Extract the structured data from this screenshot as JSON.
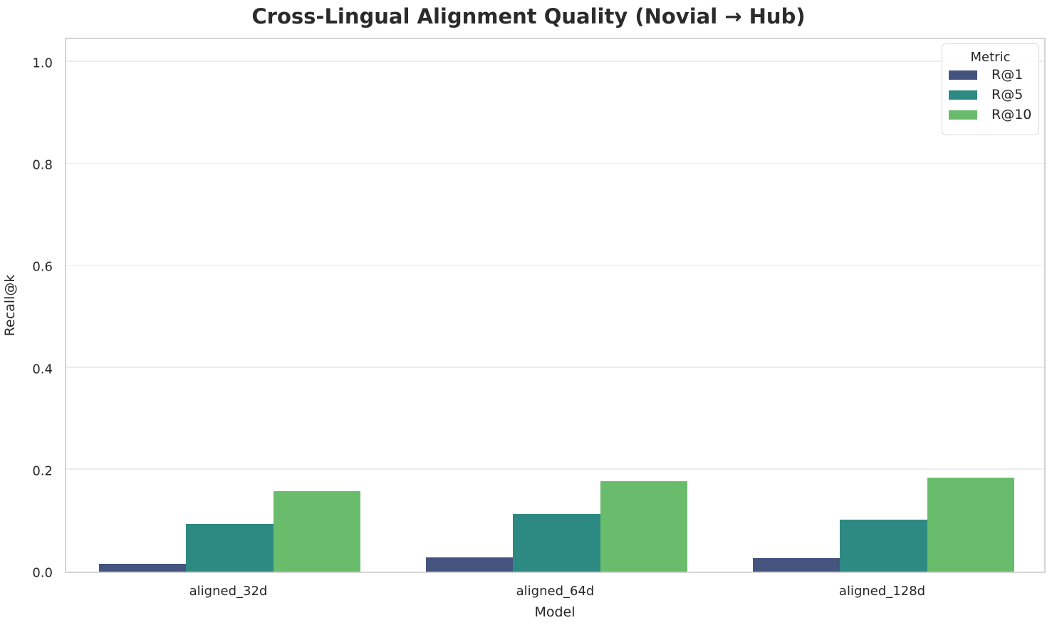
{
  "title": "Cross-Lingual Alignment Quality (Novial → Hub)",
  "chart_data": {
    "type": "bar",
    "title": "Cross-Lingual Alignment Quality (Novial → Hub)",
    "categories": [
      "aligned_32d",
      "aligned_64d",
      "aligned_128d"
    ],
    "series": [
      {
        "name": "R@1",
        "color": "#45547e",
        "values": [
          0.015,
          0.028,
          0.026
        ]
      },
      {
        "name": "R@5",
        "color": "#2d8a82",
        "values": [
          0.094,
          0.113,
          0.102
        ]
      },
      {
        "name": "R@10",
        "color": "#69bc6b",
        "values": [
          0.158,
          0.177,
          0.184
        ]
      }
    ],
    "xlabel": "Model",
    "ylabel": "Recall@k",
    "ylim": [
      0,
      1.05
    ],
    "yticks": [
      0.0,
      0.2,
      0.4,
      0.6,
      0.8,
      1.0
    ],
    "ytick_labels": [
      "0.0",
      "0.2",
      "0.4",
      "0.6",
      "0.8",
      "1.0"
    ],
    "legend_title": "Metric",
    "legend_position": "upper right",
    "grid": "horizontal",
    "group_width_fraction": 0.8
  }
}
